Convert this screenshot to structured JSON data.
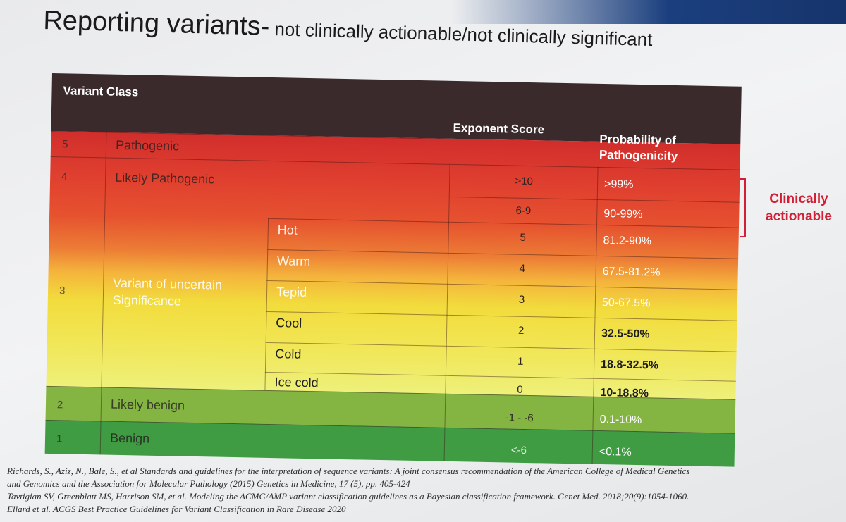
{
  "slide": {
    "title_main": "Reporting variants-",
    "title_sub": " not clinically actionable/not clinically significant"
  },
  "table": {
    "headers": {
      "variant_class": "Variant Class",
      "exponent_score": "Exponent Score",
      "probability": "Probability of Pathogenicity"
    },
    "rows": [
      {
        "num": "5",
        "label": "Pathogenic",
        "score": "",
        "prob": ""
      },
      {
        "num": "4",
        "label": "Likely Pathogenic",
        "score": ">10",
        "prob": ">99%"
      },
      {
        "num": "",
        "label": "",
        "score": "6-9",
        "prob": "90-99%"
      },
      {
        "num": "",
        "label": "",
        "sub": "Hot",
        "score": "5",
        "prob": "81.2-90%"
      },
      {
        "num": "",
        "label": "",
        "sub": "Warm",
        "score": "4",
        "prob": "67.5-81.2%"
      },
      {
        "num": "3",
        "label": "Variant of uncertain Significance",
        "sub": "Tepid",
        "score": "3",
        "prob": "50-67.5%"
      },
      {
        "num": "",
        "label": "",
        "sub": "Cool",
        "score": "2",
        "prob": "32.5-50%"
      },
      {
        "num": "",
        "label": "",
        "sub": "Cold",
        "score": "1",
        "prob": "18.8-32.5%"
      },
      {
        "num": "",
        "label": "",
        "sub": "Ice cold",
        "score": "0",
        "prob": "10-18.8%"
      },
      {
        "num": "2",
        "label": "Likely benign",
        "score": "-1 - -6",
        "prob": "0.1-10%"
      },
      {
        "num": "1",
        "label": "Benign",
        "score": "<-6",
        "prob": "<0.1%"
      }
    ],
    "colors": {
      "header": "#3b2a2c",
      "pathogenic": "#d12e2c",
      "likely_benign": "#84b542",
      "benign": "#3f9c42"
    }
  },
  "annotation": {
    "label": "Clinically actionable",
    "color": "#d31f36"
  },
  "references": [
    "Richards, S., Aziz, N., Bale, S., et al Standards and guidelines for the interpretation of sequence variants: A joint consensus recommendation of the American College of Medical Genetics",
    "and Genomics and the Association for Molecular Pathology (2015) Genetics in Medicine, 17 (5), pp. 405-424",
    "Tavtigian SV, Greenblatt MS, Harrison SM, et al. Modeling the ACMG/AMP variant classification guidelines as a Bayesian classification framework. Genet Med. 2018;20(9):1054-1060.",
    "Ellard et al. ACGS Best Practice Guidelines for Variant Classification in Rare Disease 2020"
  ]
}
